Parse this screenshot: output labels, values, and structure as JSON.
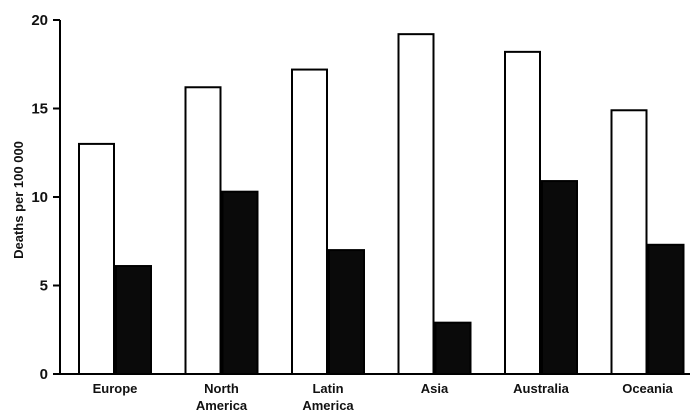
{
  "chart_data": {
    "type": "bar",
    "title": "",
    "xlabel": "",
    "ylabel": "Deaths per 100 000",
    "ylim": [
      0,
      20
    ],
    "yticks": [
      0,
      5,
      10,
      15,
      20
    ],
    "grid": false,
    "legend": "none",
    "categories": [
      [
        "Europe"
      ],
      [
        "North",
        "America"
      ],
      [
        "Latin",
        "America"
      ],
      [
        "Asia"
      ],
      [
        "Australia"
      ],
      [
        "Oceania"
      ]
    ],
    "series": [
      {
        "fill": "#ffffff",
        "stroke": "#000000",
        "values": [
          13.0,
          16.2,
          17.2,
          19.2,
          18.2,
          14.9
        ]
      },
      {
        "fill": "#0a0a0a",
        "stroke": "#000000",
        "values": [
          6.1,
          10.3,
          7.0,
          2.9,
          10.9,
          7.3
        ]
      }
    ]
  }
}
